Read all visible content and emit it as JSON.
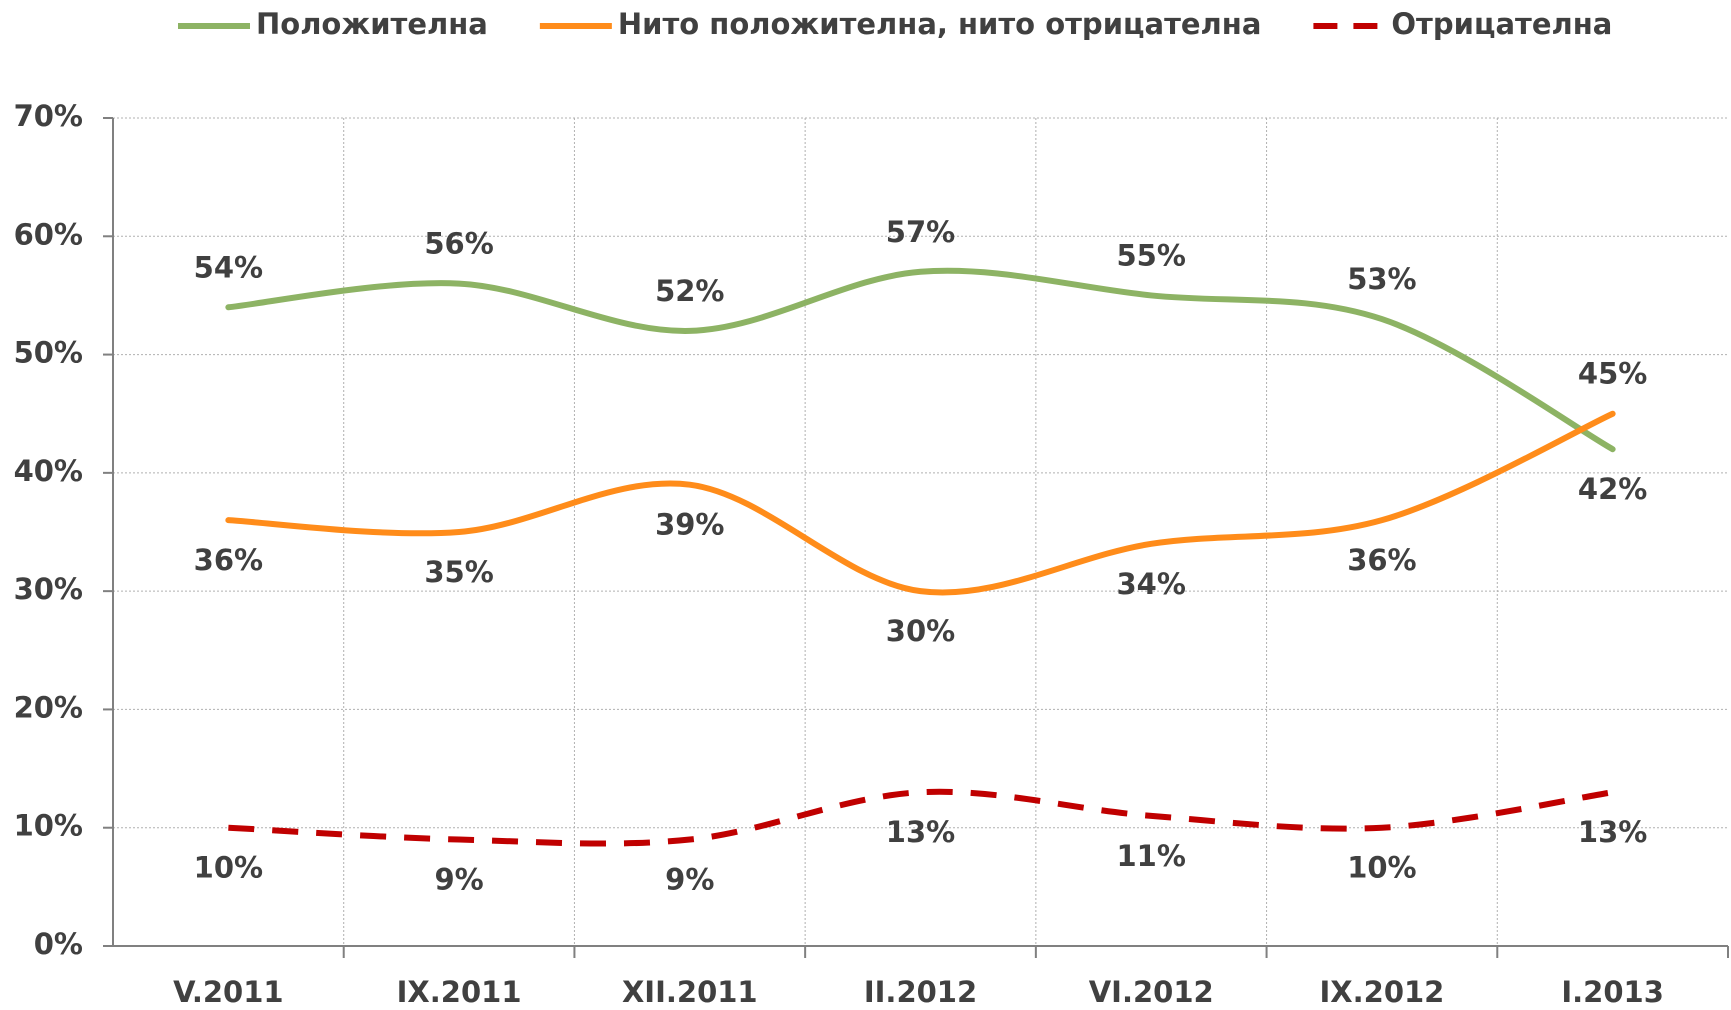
{
  "chart_data": {
    "type": "line",
    "categories": [
      "V.2011",
      "IX.2011",
      "XII.2011",
      "II.2012",
      "VI.2012",
      "IX.2012",
      "I.2013"
    ],
    "series": [
      {
        "name": "Положителна",
        "color": "#8db364",
        "dash": false,
        "values": [
          54,
          56,
          52,
          57,
          55,
          53,
          42
        ],
        "value_labels": [
          "54%",
          "56%",
          "52%",
          "57%",
          "55%",
          "53%",
          "42%"
        ]
      },
      {
        "name": "Нито положителна, нито отрицателна",
        "color": "#ff8c1a",
        "dash": false,
        "values": [
          36,
          35,
          39,
          30,
          34,
          36,
          45
        ],
        "value_labels": [
          "36%",
          "35%",
          "39%",
          "30%",
          "34%",
          "36%",
          "45%"
        ]
      },
      {
        "name": "Отрицателна",
        "color": "#c00000",
        "dash": true,
        "values": [
          10,
          9,
          9,
          13,
          11,
          10,
          13
        ],
        "value_labels": [
          "10%",
          "9%",
          "9%",
          "13%",
          "11%",
          "10%",
          "13%"
        ]
      }
    ],
    "ylim": [
      0,
      70
    ],
    "yticks": [
      {
        "value": 0,
        "label": "0%"
      },
      {
        "value": 10,
        "label": "10%"
      },
      {
        "value": 20,
        "label": "20%"
      },
      {
        "value": 30,
        "label": "30%"
      },
      {
        "value": 40,
        "label": "40%"
      },
      {
        "value": 50,
        "label": "50%"
      },
      {
        "value": 60,
        "label": "60%"
      },
      {
        "value": 70,
        "label": "70%"
      }
    ],
    "grid": true,
    "legend": "top",
    "smooth": true
  }
}
